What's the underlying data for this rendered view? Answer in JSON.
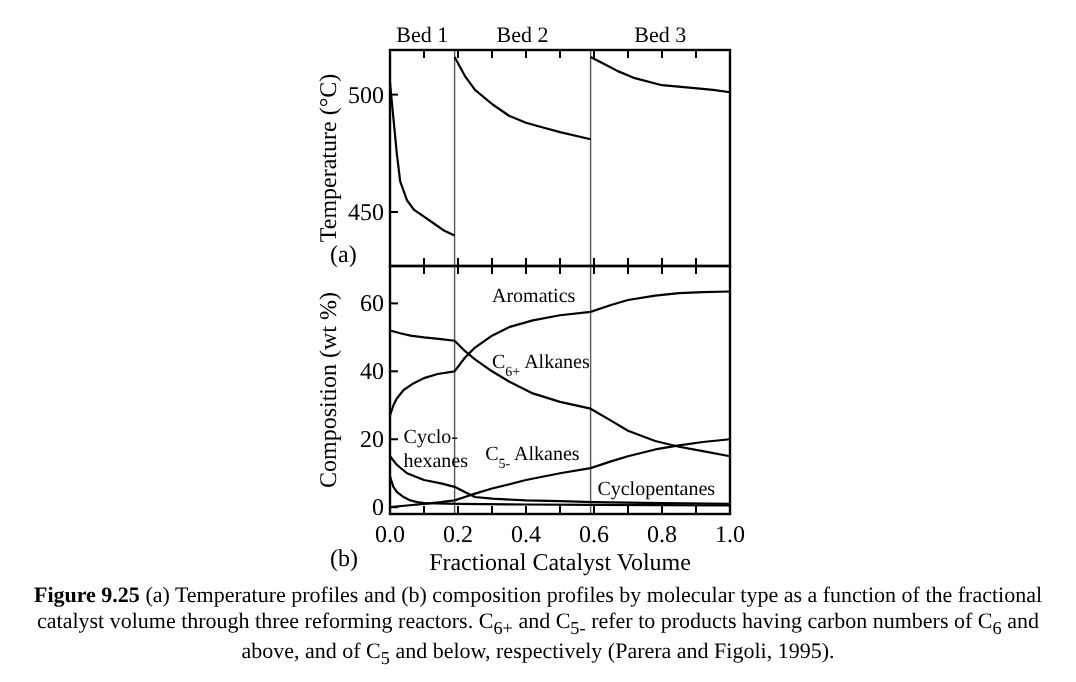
{
  "chart_data": [
    {
      "type": "line",
      "ylabel": "Temperature (°C)",
      "xlim": [
        0,
        1
      ],
      "xticks": [
        0,
        0.1,
        0.2,
        0.3,
        0.4,
        0.5,
        0.6,
        0.7,
        0.8,
        0.9,
        1
      ],
      "ylim": [
        427,
        519
      ],
      "yticks": [
        450,
        500
      ],
      "tick_labels": "y",
      "grid": false,
      "marker": "none",
      "line_style": "solid",
      "annotations": [
        "(a)",
        "Bed 1",
        "Bed 2",
        "Bed 3"
      ],
      "ref_lines": [
        {
          "axis": "x",
          "value": 0.19,
          "label": null
        },
        {
          "axis": "x",
          "value": 0.59,
          "label": null
        }
      ],
      "series": [
        {
          "color": "#000000",
          "x": [
            0,
            0.01,
            0.02,
            0.03,
            0.05,
            0.07,
            0.1,
            0.13,
            0.16,
            0.19
          ],
          "values": [
            505,
            490,
            475,
            463,
            455,
            451,
            448,
            445,
            442,
            440
          ]
        },
        {
          "color": "#000000",
          "x": [
            0.19,
            0.22,
            0.25,
            0.3,
            0.35,
            0.4,
            0.45,
            0.5,
            0.59
          ],
          "values": [
            516,
            508,
            502,
            496,
            491,
            488,
            486,
            484,
            481
          ]
        },
        {
          "color": "#000000",
          "x": [
            0.59,
            0.63,
            0.67,
            0.72,
            0.8,
            0.88,
            0.95,
            1
          ],
          "values": [
            516,
            513,
            510,
            507,
            504,
            503,
            502,
            501
          ]
        }
      ]
    },
    {
      "type": "line",
      "xlabel": "Fractional Catalyst Volume",
      "ylabel": "Composition (wt %)",
      "xlim": [
        0,
        1
      ],
      "xticks": [
        {
          "value": 0,
          "label": "0.0"
        },
        {
          "value": 0.1,
          "label": null
        },
        0.2,
        {
          "value": 0.3,
          "label": null
        },
        0.4,
        {
          "value": 0.5,
          "label": null
        },
        0.6,
        {
          "value": 0.7,
          "label": null
        },
        0.8,
        {
          "value": 0.9,
          "label": null
        },
        {
          "value": 1,
          "label": "1.0"
        }
      ],
      "ylim": [
        -2,
        71
      ],
      "yticks": [
        0,
        20,
        40,
        60
      ],
      "grid": false,
      "marker": "none",
      "line_style": "solid",
      "ref_lines": [
        {
          "axis": "x",
          "value": 0.19,
          "label": null
        },
        {
          "axis": "x",
          "value": 0.59,
          "label": null
        }
      ],
      "annotations": [
        "(b)",
        "Figure 9.25 (a) Temperature profiles and (b) composition profiles by molecular type as a function of the fractional catalyst volume through three reforming reactors. C$_{6+}$ and C$_{5-}$ refer to products having carbon numbers of C$_{6}$ and above, and of C$_{5}$ and below, respectively (Parera and Figoli, 1995)."
      ],
      "series": [
        {
          "name": "Aromatics",
          "color": "#000000",
          "x": [
            0,
            0.01,
            0.02,
            0.04,
            0.07,
            0.1,
            0.14,
            0.19,
            0.22,
            0.25,
            0.3,
            0.35,
            0.42,
            0.5,
            0.59,
            0.65,
            0.7,
            0.78,
            0.85,
            0.92,
            1
          ],
          "values": [
            27,
            30,
            32,
            34.5,
            36.5,
            38,
            39.2,
            40,
            44,
            47,
            50.5,
            53,
            55,
            56.5,
            57.5,
            59.5,
            61,
            62.3,
            63,
            63.3,
            63.5
          ]
        },
        {
          "name": "C$_{6+}$ Alkanes",
          "color": "#000000",
          "x": [
            0,
            0.03,
            0.06,
            0.1,
            0.15,
            0.19,
            0.22,
            0.25,
            0.3,
            0.35,
            0.42,
            0.5,
            0.59,
            0.65,
            0.7,
            0.78,
            0.85,
            0.92,
            1
          ],
          "values": [
            52,
            51.2,
            50.5,
            50,
            49.5,
            49,
            46,
            43.5,
            40,
            37,
            33.5,
            31,
            29,
            25.5,
            22.5,
            19.5,
            17.8,
            16.5,
            15
          ]
        },
        {
          "name": "Cyclo- hexanes",
          "color": "#000000",
          "x": [
            0,
            0.02,
            0.05,
            0.1,
            0.15,
            0.19,
            0.22,
            0.25,
            0.3,
            0.4,
            0.5,
            0.6,
            0.8,
            1
          ],
          "values": [
            15,
            12.5,
            10,
            8,
            7,
            6,
            4.5,
            3,
            2.5,
            2,
            1.8,
            1.5,
            1.2,
            1
          ]
        },
        {
          "name": "C$_{5-}$ Alkanes",
          "color": "#000000",
          "x": [
            0,
            0.05,
            0.1,
            0.15,
            0.19,
            0.22,
            0.25,
            0.3,
            0.4,
            0.5,
            0.59,
            0.65,
            0.7,
            0.78,
            0.85,
            0.92,
            1
          ],
          "values": [
            0,
            0.5,
            1,
            1.5,
            2,
            3,
            4,
            5.5,
            8,
            10,
            11.5,
            13.5,
            15,
            17,
            18.2,
            19.2,
            20
          ]
        },
        {
          "name": "Cyclopentanes",
          "color": "#000000",
          "x": [
            0,
            0.01,
            0.02,
            0.04,
            0.06,
            0.08,
            0.1,
            0.2,
            0.4,
            0.6,
            0.8,
            1
          ],
          "values": [
            9,
            6,
            4.5,
            3,
            2,
            1.5,
            1.2,
            1,
            0.8,
            0.7,
            0.6,
            0.5
          ]
        }
      ]
    }
  ]
}
